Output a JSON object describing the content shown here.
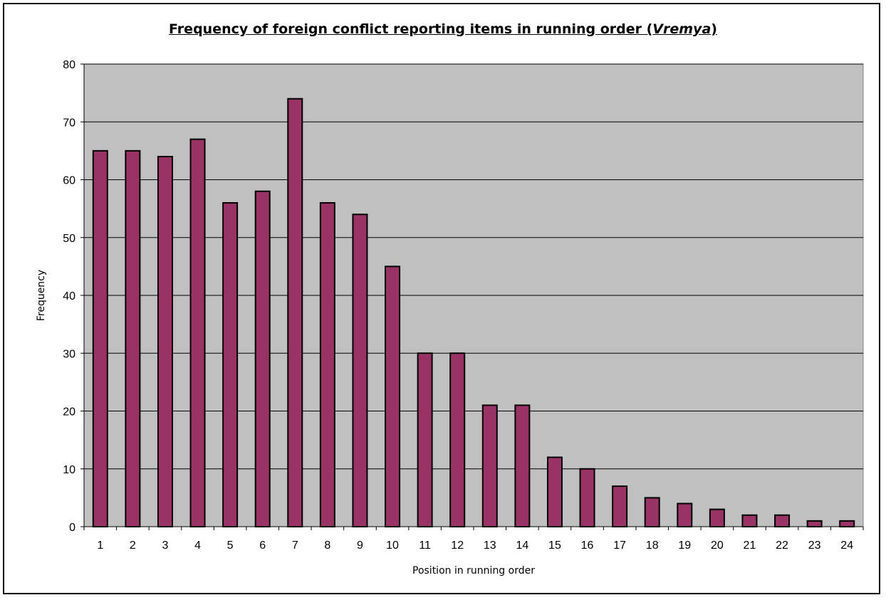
{
  "chart_data": {
    "type": "bar",
    "title_main": "Frequency of foreign conflict reporting items in running order (",
    "title_italic": "Vremya",
    "title_end": ")",
    "xlabel": "Position in running order",
    "ylabel": "Frequency",
    "categories": [
      "1",
      "2",
      "3",
      "4",
      "5",
      "6",
      "7",
      "8",
      "9",
      "10",
      "11",
      "12",
      "13",
      "14",
      "15",
      "16",
      "17",
      "18",
      "19",
      "20",
      "21",
      "22",
      "23",
      "24"
    ],
    "values": [
      65,
      65,
      64,
      67,
      56,
      58,
      74,
      56,
      54,
      45,
      30,
      30,
      21,
      21,
      12,
      10,
      7,
      5,
      4,
      3,
      2,
      2,
      1,
      1
    ],
    "ylim": [
      0,
      80
    ],
    "yticks": [
      0,
      10,
      20,
      30,
      40,
      50,
      60,
      70,
      80
    ],
    "grid": true,
    "legend": "none",
    "bar_color": "#993366",
    "plot_bg": "#c0c0c0"
  }
}
